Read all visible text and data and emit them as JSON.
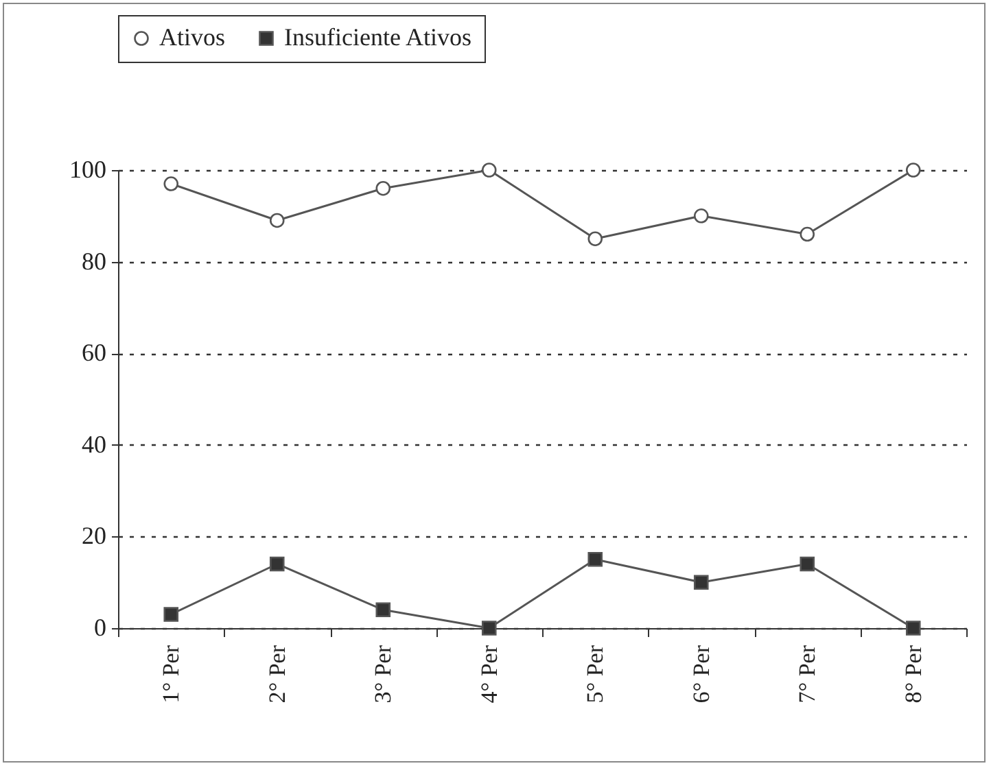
{
  "chart_data": {
    "type": "line",
    "categories": [
      "1° Per",
      "2° Per",
      "3° Per",
      "4° Per",
      "5° Per",
      "6° Per",
      "7° Per",
      "8° Per"
    ],
    "series": [
      {
        "name": "Ativos",
        "color": "#555555",
        "marker": "circle",
        "values": [
          97,
          89,
          96,
          100,
          85,
          90,
          86,
          100
        ]
      },
      {
        "name": "Insuficiente Ativos",
        "color": "#555555",
        "marker": "square",
        "values": [
          3,
          14,
          4,
          0,
          15,
          10,
          14,
          0
        ]
      }
    ],
    "ylim": [
      0,
      100
    ],
    "yticks": [
      0,
      20,
      40,
      60,
      80,
      100
    ],
    "grid": "y",
    "legend": "top left",
    "line_style": "solid"
  }
}
